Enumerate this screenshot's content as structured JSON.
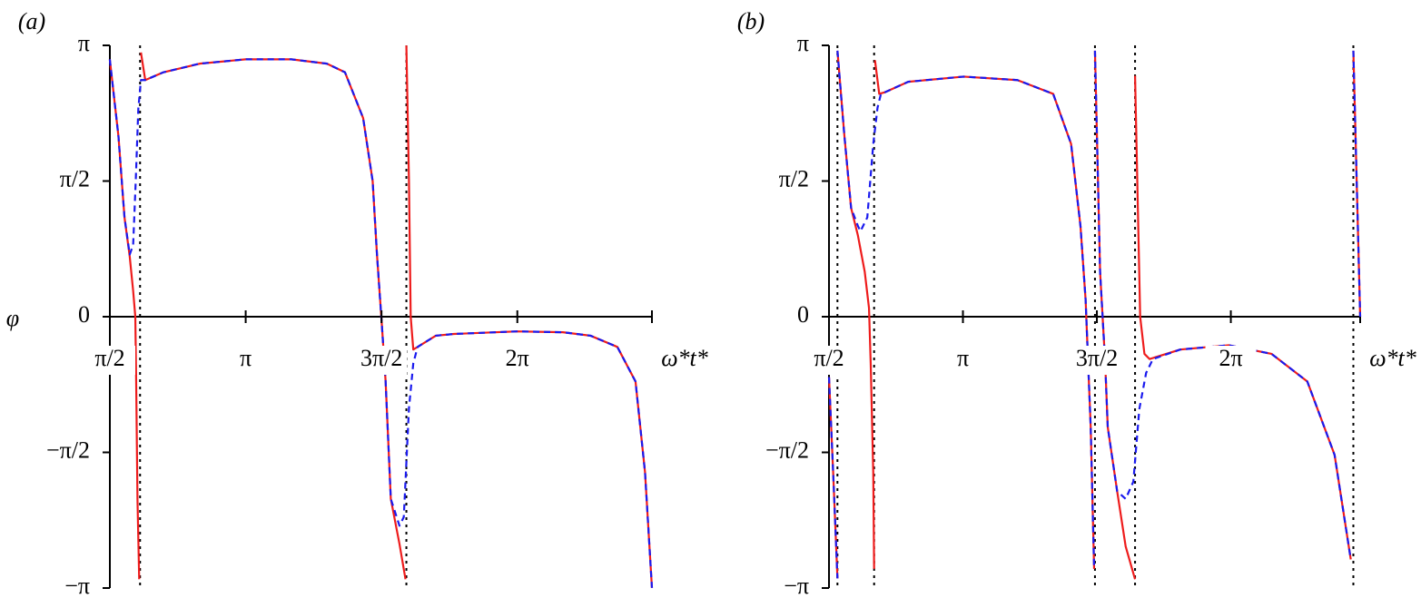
{
  "chart_data": [
    {
      "type": "line",
      "panel_label": "(a)",
      "xlabel": "ω*t*",
      "ylabel": "φ",
      "xlim": [
        1.5708,
        7.84
      ],
      "ylim": [
        -3.1416,
        3.1416
      ],
      "xticks": [
        {
          "value": 1.5708,
          "label": "π/2"
        },
        {
          "value": 3.1416,
          "label": "π"
        },
        {
          "value": 4.7124,
          "label": "3π/2"
        },
        {
          "value": 6.2832,
          "label": "2π"
        }
      ],
      "yticks": [
        {
          "value": 3.1416,
          "label": "π"
        },
        {
          "value": 1.5708,
          "label": "π/2"
        },
        0,
        {
          "value": -1.5708,
          "label": "−π/2"
        },
        {
          "value": -3.1416,
          "label": "−π"
        }
      ],
      "vlines": [
        1.92,
        5.0
      ],
      "series": [
        {
          "color": "#ee1c1c",
          "dashed": false,
          "x": [
            1.57,
            1.67,
            1.74,
            1.8,
            1.84,
            1.865,
            1.875,
            1.89,
            1.91,
            null,
            1.93,
            1.98,
            2.19,
            2.61,
            3.14,
            3.67,
            4.08,
            4.29,
            4.5,
            4.61,
            4.66,
            4.71,
            4.76,
            4.82,
            4.92,
            4.99,
            null,
            5.0,
            5.03,
            5.05,
            5.08,
            5.13,
            5.34,
            5.55,
            6.28,
            6.81,
            7.13,
            7.44,
            7.65,
            7.76,
            7.84
          ],
          "values": [
            2.98,
            2.09,
            1.15,
            0.7,
            0.3,
            0,
            -0.75,
            -2.11,
            -3.04,
            null,
            3.06,
            2.74,
            2.83,
            2.93,
            2.98,
            2.98,
            2.93,
            2.83,
            2.3,
            1.57,
            0.72,
            0,
            -0.75,
            -2.11,
            -2.63,
            -3.04,
            null,
            3.14,
            1.57,
            0,
            -0.38,
            -0.35,
            -0.22,
            -0.2,
            -0.17,
            -0.18,
            -0.22,
            -0.35,
            -0.75,
            -1.8,
            -3.14
          ]
        },
        {
          "color": "#1a1aee",
          "dashed": true,
          "x": [
            1.57,
            1.67,
            1.74,
            1.8,
            1.84,
            1.87,
            1.9,
            1.93,
            1.98,
            2.19,
            2.61,
            3.14,
            3.67,
            4.08,
            4.29,
            4.5,
            4.61,
            4.66,
            4.71,
            4.76,
            4.82,
            4.92,
            4.97,
            5.03,
            5.08,
            5.13,
            5.34,
            5.55,
            6.28,
            6.81,
            7.13,
            7.44,
            7.65,
            7.76,
            7.84
          ],
          "values": [
            2.98,
            2.09,
            1.15,
            0.72,
            0.83,
            1.57,
            2.41,
            2.74,
            2.74,
            2.83,
            2.93,
            2.98,
            2.98,
            2.93,
            2.83,
            2.3,
            1.57,
            0.72,
            0,
            -0.75,
            -2.11,
            -2.42,
            -2.32,
            -1.06,
            -0.54,
            -0.35,
            -0.22,
            -0.2,
            -0.17,
            -0.18,
            -0.22,
            -0.35,
            -0.75,
            -1.8,
            -3.14
          ]
        }
      ]
    },
    {
      "type": "line",
      "panel_label": "(b)",
      "xlabel": "ω*t*",
      "xlim": [
        1.5708,
        7.8
      ],
      "ylim": [
        -3.1416,
        3.1416
      ],
      "xticks": [
        {
          "value": 1.5708,
          "label": "π/2"
        },
        {
          "value": 3.1416,
          "label": "π"
        },
        {
          "value": 4.7124,
          "label": "3π/2"
        },
        {
          "value": 6.2832,
          "label": "2π"
        }
      ],
      "yticks": [
        {
          "value": 3.1416,
          "label": "π"
        },
        {
          "value": 1.5708,
          "label": "π/2"
        },
        0,
        {
          "value": -1.5708,
          "label": "−π/2"
        },
        {
          "value": -3.1416,
          "label": "−π"
        }
      ],
      "vlines": [
        1.67,
        2.1,
        4.69,
        5.16,
        7.72
      ],
      "series": [
        {
          "color": "#ee1c1c",
          "dashed": false,
          "x": [
            1.571,
            1.62,
            1.67,
            null,
            1.67,
            1.75,
            1.83,
            1.91,
            1.99,
            2.04,
            2.06,
            2.09,
            2.1,
            null,
            2.11,
            2.16,
            2.23,
            2.5,
            3.15,
            3.78,
            4.2,
            4.41,
            4.52,
            4.58,
            4.61,
            4.64,
            4.68,
            null,
            4.69,
            4.75,
            4.81,
            4.84,
            4.95,
            5.05,
            5.16,
            null,
            5.16,
            5.22,
            5.27,
            5.33,
            5.69,
            6.26,
            6.76,
            7.18,
            7.5,
            7.69,
            null,
            7.72,
            7.8
          ],
          "values": [
            -0.7,
            -1.81,
            -3.03,
            null,
            3.08,
            2.11,
            1.26,
            0.94,
            0.52,
            0.1,
            -0.54,
            -1.81,
            -2.92,
            null,
            2.97,
            2.58,
            2.6,
            2.72,
            2.78,
            2.74,
            2.58,
            2.0,
            1.05,
            0.2,
            -0.54,
            -1.28,
            -2.92,
            null,
            3.08,
            0.52,
            -0.54,
            -1.28,
            -2.02,
            -2.66,
            -3.04,
            null,
            2.79,
            0,
            -0.43,
            -0.49,
            -0.38,
            -0.33,
            -0.43,
            -0.75,
            -1.6,
            -2.81,
            null,
            3.08,
            0
          ]
        },
        {
          "color": "#1a1aee",
          "dashed": true,
          "x": [
            1.571,
            1.62,
            1.67,
            null,
            1.67,
            1.75,
            1.83,
            1.91,
            1.94,
            2.02,
            2.09,
            2.14,
            2.18,
            2.23,
            2.5,
            3.15,
            3.78,
            4.2,
            4.41,
            4.52,
            4.58,
            4.61,
            4.64,
            4.68,
            null,
            4.69,
            4.75,
            4.81,
            4.84,
            4.95,
            5.05,
            5.14,
            5.21,
            5.29,
            5.37,
            5.69,
            6.26,
            6.76,
            7.18,
            7.5,
            7.69,
            null,
            7.72,
            7.8
          ],
          "values": [
            -0.7,
            -1.81,
            -3.03,
            null,
            3.08,
            2.11,
            1.26,
            1.05,
            0.99,
            1.15,
            2.0,
            2.42,
            2.58,
            2.6,
            2.72,
            2.78,
            2.74,
            2.58,
            2.0,
            1.05,
            0.2,
            -0.54,
            -1.28,
            -2.92,
            null,
            3.08,
            0.52,
            -0.54,
            -1.28,
            -2.02,
            -2.11,
            -1.91,
            -1.07,
            -0.65,
            -0.49,
            -0.38,
            -0.33,
            -0.43,
            -0.75,
            -1.6,
            -2.81,
            null,
            3.08,
            0
          ]
        }
      ]
    }
  ]
}
